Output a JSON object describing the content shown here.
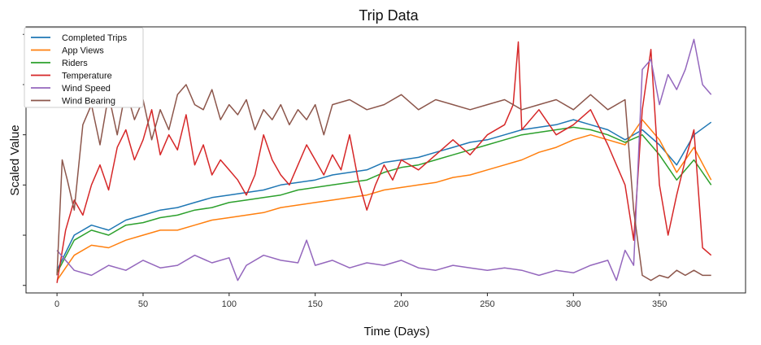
{
  "chart_data": {
    "type": "line",
    "title": "Trip Data",
    "xlabel": "Time (Days)",
    "ylabel": "Scaled Value",
    "xlim": [
      -18,
      400
    ],
    "ylim": [
      -0.03,
      1.03
    ],
    "x_ticks": [
      0,
      50,
      100,
      150,
      200,
      250,
      300,
      350
    ],
    "y_ticks_unlabeled": [
      0.0,
      0.2,
      0.4,
      0.6,
      0.8,
      1.0
    ],
    "grid": false,
    "legend_position": "top-left",
    "series": [
      {
        "name": "Completed Trips",
        "color": "#1f77b4",
        "points": [
          [
            0,
            0.06
          ],
          [
            10,
            0.2
          ],
          [
            20,
            0.24
          ],
          [
            30,
            0.22
          ],
          [
            40,
            0.26
          ],
          [
            50,
            0.28
          ],
          [
            60,
            0.3
          ],
          [
            70,
            0.31
          ],
          [
            80,
            0.33
          ],
          [
            90,
            0.35
          ],
          [
            100,
            0.36
          ],
          [
            110,
            0.37
          ],
          [
            120,
            0.38
          ],
          [
            130,
            0.4
          ],
          [
            140,
            0.41
          ],
          [
            150,
            0.42
          ],
          [
            160,
            0.44
          ],
          [
            170,
            0.45
          ],
          [
            180,
            0.46
          ],
          [
            190,
            0.49
          ],
          [
            200,
            0.5
          ],
          [
            210,
            0.51
          ],
          [
            220,
            0.53
          ],
          [
            230,
            0.55
          ],
          [
            240,
            0.57
          ],
          [
            250,
            0.58
          ],
          [
            260,
            0.6
          ],
          [
            270,
            0.62
          ],
          [
            280,
            0.63
          ],
          [
            290,
            0.64
          ],
          [
            300,
            0.66
          ],
          [
            310,
            0.64
          ],
          [
            320,
            0.62
          ],
          [
            330,
            0.58
          ],
          [
            340,
            0.62
          ],
          [
            350,
            0.56
          ],
          [
            360,
            0.48
          ],
          [
            370,
            0.6
          ],
          [
            380,
            0.65
          ]
        ]
      },
      {
        "name": "App Views",
        "color": "#ff7f0e",
        "points": [
          [
            0,
            0.02
          ],
          [
            10,
            0.12
          ],
          [
            20,
            0.16
          ],
          [
            30,
            0.15
          ],
          [
            40,
            0.18
          ],
          [
            50,
            0.2
          ],
          [
            60,
            0.22
          ],
          [
            70,
            0.22
          ],
          [
            80,
            0.24
          ],
          [
            90,
            0.26
          ],
          [
            100,
            0.27
          ],
          [
            110,
            0.28
          ],
          [
            120,
            0.29
          ],
          [
            130,
            0.31
          ],
          [
            140,
            0.32
          ],
          [
            150,
            0.33
          ],
          [
            160,
            0.34
          ],
          [
            170,
            0.35
          ],
          [
            180,
            0.36
          ],
          [
            190,
            0.38
          ],
          [
            200,
            0.39
          ],
          [
            210,
            0.4
          ],
          [
            220,
            0.41
          ],
          [
            230,
            0.43
          ],
          [
            240,
            0.44
          ],
          [
            250,
            0.46
          ],
          [
            260,
            0.48
          ],
          [
            270,
            0.5
          ],
          [
            280,
            0.53
          ],
          [
            290,
            0.55
          ],
          [
            300,
            0.58
          ],
          [
            310,
            0.6
          ],
          [
            320,
            0.58
          ],
          [
            330,
            0.56
          ],
          [
            340,
            0.66
          ],
          [
            350,
            0.58
          ],
          [
            360,
            0.45
          ],
          [
            370,
            0.55
          ],
          [
            380,
            0.42
          ]
        ]
      },
      {
        "name": "Riders",
        "color": "#2ca02c",
        "points": [
          [
            0,
            0.05
          ],
          [
            10,
            0.18
          ],
          [
            20,
            0.22
          ],
          [
            30,
            0.2
          ],
          [
            40,
            0.24
          ],
          [
            50,
            0.25
          ],
          [
            60,
            0.27
          ],
          [
            70,
            0.28
          ],
          [
            80,
            0.3
          ],
          [
            90,
            0.31
          ],
          [
            100,
            0.33
          ],
          [
            110,
            0.34
          ],
          [
            120,
            0.35
          ],
          [
            130,
            0.36
          ],
          [
            140,
            0.38
          ],
          [
            150,
            0.39
          ],
          [
            160,
            0.4
          ],
          [
            170,
            0.41
          ],
          [
            180,
            0.42
          ],
          [
            190,
            0.45
          ],
          [
            200,
            0.47
          ],
          [
            210,
            0.48
          ],
          [
            220,
            0.5
          ],
          [
            230,
            0.52
          ],
          [
            240,
            0.54
          ],
          [
            250,
            0.56
          ],
          [
            260,
            0.58
          ],
          [
            270,
            0.6
          ],
          [
            280,
            0.61
          ],
          [
            290,
            0.62
          ],
          [
            300,
            0.63
          ],
          [
            310,
            0.62
          ],
          [
            320,
            0.6
          ],
          [
            330,
            0.57
          ],
          [
            340,
            0.6
          ],
          [
            350,
            0.52
          ],
          [
            360,
            0.42
          ],
          [
            370,
            0.5
          ],
          [
            380,
            0.4
          ]
        ]
      },
      {
        "name": "Temperature",
        "color": "#d62728",
        "points": [
          [
            0,
            0.01
          ],
          [
            5,
            0.22
          ],
          [
            10,
            0.34
          ],
          [
            15,
            0.28
          ],
          [
            20,
            0.4
          ],
          [
            25,
            0.48
          ],
          [
            30,
            0.38
          ],
          [
            35,
            0.55
          ],
          [
            40,
            0.62
          ],
          [
            45,
            0.5
          ],
          [
            50,
            0.58
          ],
          [
            55,
            0.7
          ],
          [
            60,
            0.52
          ],
          [
            65,
            0.6
          ],
          [
            70,
            0.54
          ],
          [
            75,
            0.68
          ],
          [
            80,
            0.48
          ],
          [
            85,
            0.56
          ],
          [
            90,
            0.44
          ],
          [
            95,
            0.5
          ],
          [
            100,
            0.46
          ],
          [
            105,
            0.42
          ],
          [
            110,
            0.36
          ],
          [
            115,
            0.44
          ],
          [
            120,
            0.6
          ],
          [
            125,
            0.5
          ],
          [
            130,
            0.44
          ],
          [
            135,
            0.4
          ],
          [
            140,
            0.48
          ],
          [
            145,
            0.56
          ],
          [
            150,
            0.5
          ],
          [
            155,
            0.44
          ],
          [
            160,
            0.52
          ],
          [
            165,
            0.46
          ],
          [
            170,
            0.6
          ],
          [
            175,
            0.42
          ],
          [
            180,
            0.3
          ],
          [
            185,
            0.4
          ],
          [
            190,
            0.48
          ],
          [
            195,
            0.42
          ],
          [
            200,
            0.5
          ],
          [
            210,
            0.46
          ],
          [
            220,
            0.52
          ],
          [
            230,
            0.58
          ],
          [
            240,
            0.52
          ],
          [
            250,
            0.6
          ],
          [
            260,
            0.64
          ],
          [
            265,
            0.72
          ],
          [
            268,
            0.97
          ],
          [
            270,
            0.62
          ],
          [
            280,
            0.7
          ],
          [
            290,
            0.6
          ],
          [
            300,
            0.64
          ],
          [
            310,
            0.7
          ],
          [
            320,
            0.56
          ],
          [
            330,
            0.4
          ],
          [
            335,
            0.18
          ],
          [
            340,
            0.7
          ],
          [
            345,
            0.94
          ],
          [
            350,
            0.4
          ],
          [
            355,
            0.2
          ],
          [
            360,
            0.36
          ],
          [
            365,
            0.5
          ],
          [
            370,
            0.62
          ],
          [
            375,
            0.15
          ],
          [
            380,
            0.12
          ]
        ]
      },
      {
        "name": "Wind Speed",
        "color": "#9467bd",
        "points": [
          [
            0,
            0.14
          ],
          [
            10,
            0.06
          ],
          [
            20,
            0.04
          ],
          [
            30,
            0.08
          ],
          [
            40,
            0.06
          ],
          [
            50,
            0.1
          ],
          [
            60,
            0.07
          ],
          [
            70,
            0.08
          ],
          [
            80,
            0.12
          ],
          [
            90,
            0.09
          ],
          [
            100,
            0.11
          ],
          [
            105,
            0.02
          ],
          [
            110,
            0.08
          ],
          [
            120,
            0.12
          ],
          [
            130,
            0.1
          ],
          [
            140,
            0.09
          ],
          [
            145,
            0.18
          ],
          [
            150,
            0.08
          ],
          [
            160,
            0.1
          ],
          [
            170,
            0.07
          ],
          [
            180,
            0.09
          ],
          [
            190,
            0.08
          ],
          [
            200,
            0.1
          ],
          [
            210,
            0.07
          ],
          [
            220,
            0.06
          ],
          [
            230,
            0.08
          ],
          [
            240,
            0.07
          ],
          [
            250,
            0.06
          ],
          [
            260,
            0.07
          ],
          [
            270,
            0.06
          ],
          [
            280,
            0.04
          ],
          [
            290,
            0.06
          ],
          [
            300,
            0.05
          ],
          [
            310,
            0.08
          ],
          [
            320,
            0.1
          ],
          [
            325,
            0.02
          ],
          [
            330,
            0.14
          ],
          [
            335,
            0.08
          ],
          [
            340,
            0.86
          ],
          [
            345,
            0.9
          ],
          [
            350,
            0.72
          ],
          [
            355,
            0.84
          ],
          [
            360,
            0.78
          ],
          [
            365,
            0.86
          ],
          [
            370,
            0.98
          ],
          [
            375,
            0.8
          ],
          [
            380,
            0.76
          ]
        ]
      },
      {
        "name": "Wind Bearing",
        "color": "#8c564b",
        "points": [
          [
            0,
            0.04
          ],
          [
            3,
            0.5
          ],
          [
            6,
            0.42
          ],
          [
            10,
            0.3
          ],
          [
            15,
            0.64
          ],
          [
            20,
            0.72
          ],
          [
            25,
            0.56
          ],
          [
            30,
            0.76
          ],
          [
            35,
            0.6
          ],
          [
            40,
            0.78
          ],
          [
            45,
            0.66
          ],
          [
            50,
            0.74
          ],
          [
            55,
            0.58
          ],
          [
            60,
            0.7
          ],
          [
            65,
            0.62
          ],
          [
            70,
            0.76
          ],
          [
            75,
            0.8
          ],
          [
            80,
            0.72
          ],
          [
            85,
            0.7
          ],
          [
            90,
            0.78
          ],
          [
            95,
            0.66
          ],
          [
            100,
            0.72
          ],
          [
            105,
            0.68
          ],
          [
            110,
            0.74
          ],
          [
            115,
            0.62
          ],
          [
            120,
            0.7
          ],
          [
            125,
            0.66
          ],
          [
            130,
            0.72
          ],
          [
            135,
            0.64
          ],
          [
            140,
            0.7
          ],
          [
            145,
            0.66
          ],
          [
            150,
            0.72
          ],
          [
            155,
            0.6
          ],
          [
            160,
            0.72
          ],
          [
            170,
            0.74
          ],
          [
            180,
            0.7
          ],
          [
            190,
            0.72
          ],
          [
            200,
            0.76
          ],
          [
            210,
            0.7
          ],
          [
            220,
            0.74
          ],
          [
            230,
            0.72
          ],
          [
            240,
            0.7
          ],
          [
            250,
            0.72
          ],
          [
            260,
            0.74
          ],
          [
            270,
            0.7
          ],
          [
            280,
            0.72
          ],
          [
            290,
            0.74
          ],
          [
            300,
            0.7
          ],
          [
            310,
            0.76
          ],
          [
            320,
            0.7
          ],
          [
            330,
            0.74
          ],
          [
            335,
            0.3
          ],
          [
            340,
            0.04
          ],
          [
            345,
            0.02
          ],
          [
            350,
            0.04
          ],
          [
            355,
            0.03
          ],
          [
            360,
            0.06
          ],
          [
            365,
            0.04
          ],
          [
            370,
            0.06
          ],
          [
            375,
            0.04
          ],
          [
            380,
            0.04
          ]
        ]
      }
    ]
  }
}
